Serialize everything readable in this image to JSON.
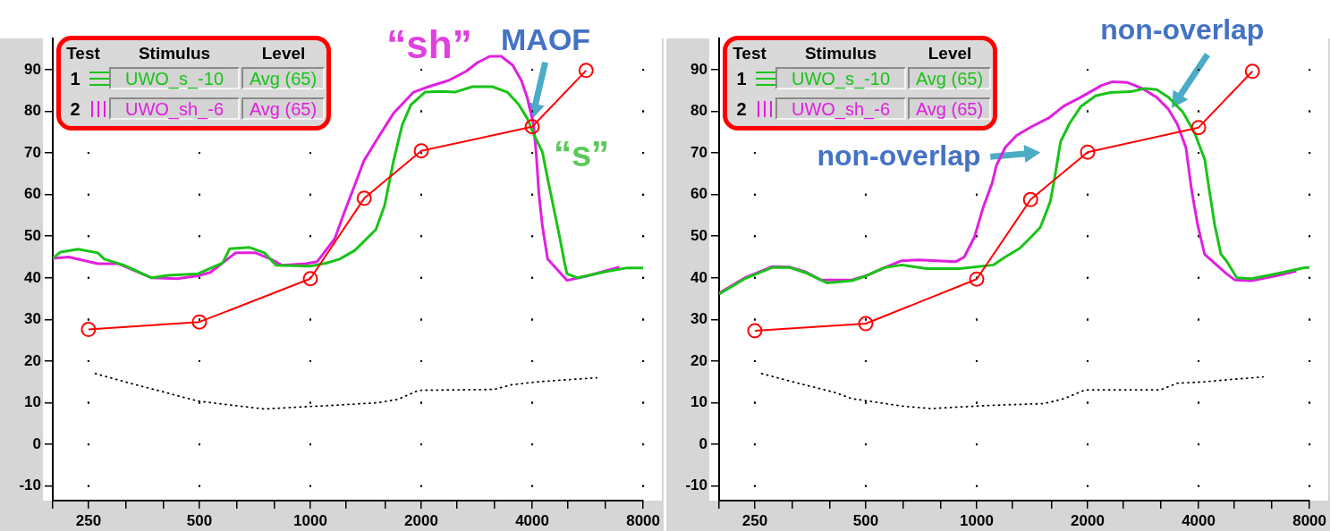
{
  "chart_data": [
    {
      "type": "line",
      "log": "x",
      "grid": true,
      "legend": "top left",
      "xlim": [
        200,
        8000
      ],
      "xticks": [
        {
          "value": 200,
          "label": null
        },
        250,
        {
          "value": 315,
          "label": null
        },
        {
          "value": 400,
          "label": null
        },
        500,
        {
          "value": 630,
          "label": null
        },
        {
          "value": 800,
          "label": null
        },
        1000,
        {
          "value": 1250,
          "label": null
        },
        {
          "value": 1600,
          "label": null
        },
        2000,
        {
          "value": 2500,
          "label": null
        },
        {
          "value": 3150,
          "label": null
        },
        4000,
        {
          "value": 5000,
          "label": null
        },
        {
          "value": 6300,
          "label": null
        },
        8000
      ],
      "ylim": [
        -13.5,
        97.5
      ],
      "yticks": [
        -10,
        0,
        10,
        20,
        30,
        40,
        50,
        60,
        70,
        80,
        90
      ],
      "series": [
        {
          "name": "UWO_s_-10",
          "color": "#19c319",
          "x": [
            200,
            210,
            234,
            265,
            276,
            313,
            371,
            411,
            496,
            578,
            604,
            685,
            751,
            807,
            1000,
            1100,
            1200,
            1320,
            1506,
            1591,
            1681,
            1775,
            1875,
            2047,
            2283,
            2466,
            2751,
            3119,
            3424,
            3677,
            3883,
            4036,
            4263,
            4405,
            4576,
            4757,
            4888,
            4968,
            5307,
            6355,
            7250,
            8000
          ],
          "values": [
            44.7,
            46.2,
            46.9,
            46,
            44.5,
            43,
            40,
            40.6,
            41,
            43.6,
            47,
            47.3,
            46,
            43,
            42.8,
            43.5,
            44.5,
            46.6,
            51.6,
            57.4,
            68,
            76.7,
            81.6,
            84.6,
            84.8,
            84.6,
            85.9,
            85.9,
            84.6,
            81.6,
            78.2,
            74.5,
            70.2,
            63.8,
            56.7,
            49.4,
            43.9,
            41,
            40,
            41.5,
            42.4,
            42.4
          ]
        },
        {
          "name": "UWO_sh_-6",
          "color": "#e020e0",
          "x": [
            200,
            221,
            265,
            301,
            371,
            435,
            496,
            535,
            627,
            711,
            781,
            838,
            972,
            1044,
            1165,
            1230,
            1320,
            1395,
            1532,
            1681,
            1906,
            2092,
            2372,
            2647,
            2842,
            3069,
            3295,
            3538,
            3737,
            3883,
            4036,
            4103,
            4170,
            4263,
            4405,
            4968,
            5605,
            6900
          ],
          "values": [
            44.7,
            45,
            43.4,
            43.4,
            40,
            39.8,
            40.5,
            41.3,
            46,
            46,
            44.5,
            43,
            43.4,
            43.9,
            49.4,
            55.2,
            62.3,
            68,
            73.9,
            79.5,
            84.6,
            85.9,
            87.4,
            89.6,
            91.7,
            93.2,
            93.2,
            91.1,
            87.4,
            83.1,
            76.7,
            69.6,
            60.2,
            52.4,
            44.5,
            39.4,
            40.4,
            42.6
          ]
        },
        {
          "color": "#ff0000",
          "marker": "circle",
          "x": [
            250,
            500,
            1000,
            1400,
            2000,
            4000,
            5600
          ],
          "values": [
            27.6,
            29.4,
            39.8,
            59.1,
            70.5,
            76.3,
            89.8
          ]
        },
        {
          "color": "#000000",
          "line_style": "dotted",
          "x": [
            261,
            318,
            411,
            496,
            627,
            751,
            900,
            1109,
            1523,
            1727,
            1970,
            3155,
            3500,
            4103,
            4915,
            5985
          ],
          "values": [
            17,
            14.9,
            12.3,
            10.4,
            9.3,
            8.5,
            8.9,
            9.3,
            10,
            10.8,
            13,
            13.2,
            14.3,
            15,
            15.5,
            16
          ]
        }
      ],
      "annotations": [
        "Test",
        "Stimulus",
        "Level",
        "1",
        "Avg (65)",
        "2",
        "Avg (65)",
        "“sh”",
        {
          "text": "MAOF",
          "x": 4000,
          "y": 78
        },
        "“s”"
      ]
    },
    {
      "type": "line",
      "log": "x",
      "grid": true,
      "legend": "top left",
      "xlim": [
        200,
        8000
      ],
      "xticks": [
        {
          "value": 200,
          "label": null
        },
        250,
        {
          "value": 315,
          "label": null
        },
        {
          "value": 400,
          "label": null
        },
        500,
        {
          "value": 630,
          "label": null
        },
        {
          "value": 800,
          "label": null
        },
        1000,
        {
          "value": 1250,
          "label": null
        },
        {
          "value": 1600,
          "label": null
        },
        2000,
        {
          "value": 2500,
          "label": null
        },
        {
          "value": 3150,
          "label": null
        },
        4000,
        {
          "value": 5000,
          "label": null
        },
        {
          "value": 6300,
          "label": null
        },
        8000
      ],
      "ylim": [
        -13.5,
        97.5
      ],
      "yticks": [
        -10,
        0,
        10,
        20,
        30,
        40,
        50,
        60,
        70,
        80,
        90
      ],
      "series": [
        {
          "name": "UWO_s_-10",
          "color": "#19c319",
          "x": [
            200,
            236,
            279,
            310,
            344,
            392,
            458,
            502,
            564,
            626,
            731,
            900,
            1109,
            1195,
            1309,
            1408,
            1487,
            1542,
            1585,
            1629,
            1689,
            1784,
            1919,
            2101,
            2302,
            2614,
            2864,
            3080,
            3313,
            3628,
            3903,
            4158,
            4273,
            4423,
            4598,
            4760,
            5080,
            5567,
            6497,
            7800,
            8000
          ],
          "values": [
            36.1,
            39.9,
            42.5,
            42.5,
            41.2,
            38.8,
            39.3,
            40.5,
            42.5,
            43.1,
            42.2,
            42.2,
            43.1,
            45,
            47.1,
            49.9,
            52.1,
            55.6,
            58.5,
            64.2,
            72.7,
            77,
            81.2,
            83.7,
            84.5,
            84.7,
            85.5,
            85.2,
            83.4,
            79.8,
            74.8,
            68.4,
            61.3,
            52.8,
            45.7,
            44.1,
            40,
            39.8,
            41,
            42.5,
            42.5
          ]
        },
        {
          "name": "UWO_sh_-6",
          "color": "#e020e0",
          "x": [
            200,
            236,
            279,
            310,
            344,
            377,
            458,
            502,
            564,
            626,
            695,
            878,
            925,
            987,
            1043,
            1101,
            1131,
            1195,
            1283,
            1408,
            1570,
            1720,
            1919,
            2180,
            2340,
            2567,
            2812,
            3074,
            3313,
            3500,
            3696,
            3826,
            3976,
            4152,
            4760,
            5015,
            5567,
            6497,
            7370
          ],
          "values": [
            36.3,
            40.1,
            42.7,
            42.6,
            41.4,
            39.5,
            39.5,
            40.5,
            42.5,
            44.1,
            44.3,
            43.9,
            45,
            49.9,
            57.1,
            62.7,
            67,
            71.3,
            74.2,
            76.3,
            78.4,
            81.2,
            83.4,
            86.2,
            87.1,
            86.9,
            85.5,
            83.4,
            80.5,
            77,
            71.3,
            61.3,
            52.8,
            45.7,
            41,
            39.5,
            39.3,
            40.5,
            41.6
          ]
        },
        {
          "color": "#ff0000",
          "marker": "circle",
          "x": [
            250,
            500,
            1000,
            1400,
            2000,
            4000,
            5600
          ],
          "values": [
            27.3,
            29,
            39.7,
            58.8,
            70.2,
            76.1,
            89.6
          ]
        },
        {
          "color": "#000000",
          "line_style": "dotted",
          "x": [
            261,
            318,
            411,
            458,
            627,
            751,
            900,
            1109,
            1523,
            1727,
            1970,
            3155,
            3500,
            4103,
            4915,
            5985
          ],
          "values": [
            17,
            15,
            12.5,
            11,
            9.2,
            8.6,
            9,
            9.4,
            9.8,
            11,
            13.1,
            13.1,
            14.7,
            15,
            15.6,
            16.2
          ]
        }
      ],
      "annotations": [
        "Test",
        "Stimulus",
        "Level",
        "1",
        "Avg (65)",
        "2",
        "Avg (65)",
        "non-overlap",
        {
          "text": "non-overlap",
          "x": 3378,
          "y": 80.8
        }
      ]
    }
  ]
}
